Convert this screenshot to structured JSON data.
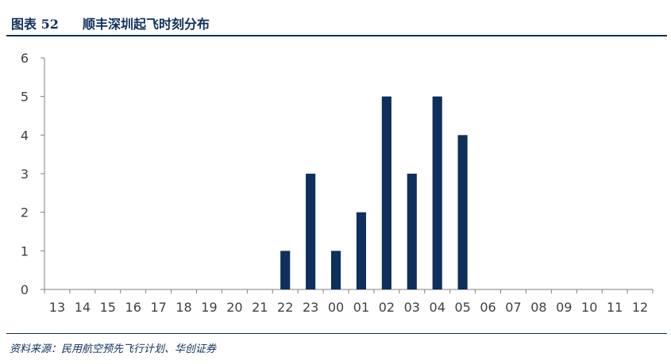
{
  "figure": {
    "label": "图表 52",
    "title": "顺丰深圳起飞时刻分布",
    "source": "资料来源：民用航空预先飞行计划、华创证券"
  },
  "colors": {
    "bar": "#0f2f5c",
    "axis": "#7f7f7f",
    "text": "#404040"
  },
  "chart_data": {
    "type": "bar",
    "title": "顺丰深圳起飞时刻分布",
    "xlabel": "",
    "ylabel": "",
    "categories": [
      "13",
      "14",
      "15",
      "16",
      "17",
      "18",
      "19",
      "20",
      "21",
      "22",
      "23",
      "00",
      "01",
      "02",
      "03",
      "04",
      "05",
      "06",
      "07",
      "08",
      "09",
      "10",
      "11",
      "12"
    ],
    "values": [
      0,
      0,
      0,
      0,
      0,
      0,
      0,
      0,
      0,
      1,
      3,
      1,
      2,
      5,
      3,
      5,
      4,
      0,
      0,
      0,
      0,
      0,
      0,
      0
    ],
    "ylim": [
      0,
      6
    ],
    "yticks": [
      0,
      1,
      2,
      3,
      4,
      5,
      6
    ],
    "grid": false,
    "legend": "none"
  }
}
